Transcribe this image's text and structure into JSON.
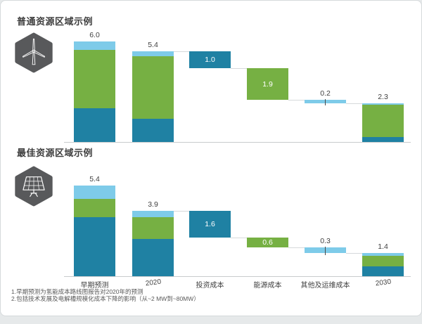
{
  "colors": {
    "teal": "#1F81A3",
    "green": "#76B043",
    "sky": "#7ECBE9",
    "axis": "#C8CBCD",
    "connector": "#D6D9DB",
    "tick": "#4A4A4A",
    "label": "#3F3F3F",
    "inside_label": "#FFFFFF",
    "icon_bg": "#58595B",
    "card_border": "#D5D9DB",
    "page_bg": "#E6E9EA"
  },
  "chart_data": [
    {
      "type": "waterfall",
      "title": "普通资源区域示例",
      "icon": "wind-turbine-icon",
      "legend": "none",
      "value_axis_visible": false,
      "categories": [
        "早期预测",
        "2020",
        "投资成本",
        "能源成本",
        "其他及运维成本",
        "2030"
      ],
      "columns": [
        {
          "category": "早期预测",
          "kind": "stack",
          "total": 6.0,
          "total_display": "6.0",
          "segments": [
            {
              "color": "teal",
              "value": 2.0
            },
            {
              "color": "green",
              "value": 3.5
            },
            {
              "color": "sky",
              "value": 0.5
            }
          ]
        },
        {
          "category": "2020",
          "kind": "stack",
          "total": 5.4,
          "total_display": "5.4",
          "segments": [
            {
              "color": "teal",
              "value": 1.4
            },
            {
              "color": "green",
              "value": 3.7
            },
            {
              "color": "sky",
              "value": 0.3
            }
          ]
        },
        {
          "category": "投资成本",
          "kind": "float",
          "value": 1.0,
          "display": "1.0",
          "top": 5.4,
          "bottom": 4.4,
          "color": "teal",
          "label_pos": "inside"
        },
        {
          "category": "能源成本",
          "kind": "float",
          "value": 1.9,
          "display": "1.9",
          "top": 4.4,
          "bottom": 2.5,
          "color": "green",
          "label_pos": "inside"
        },
        {
          "category": "其他及运维成本",
          "kind": "float",
          "value": 0.2,
          "display": "0.2",
          "top": 2.5,
          "bottom": 2.3,
          "color": "sky",
          "label_pos": "above",
          "tick": true
        },
        {
          "category": "2030",
          "kind": "stack",
          "total": 2.3,
          "total_display": "2.3",
          "segments": [
            {
              "color": "teal",
              "value": 0.3
            },
            {
              "color": "green",
              "value": 1.9
            },
            {
              "color": "sky",
              "value": 0.1
            }
          ]
        }
      ]
    },
    {
      "type": "waterfall",
      "title": "最佳资源区域示例",
      "icon": "solar-panel-icon",
      "legend": "none",
      "value_axis_visible": false,
      "categories": [
        "早期预测",
        "2020",
        "投资成本",
        "能源成本",
        "其他及运维成本",
        "2030"
      ],
      "columns": [
        {
          "category": "早期预测",
          "kind": "stack",
          "total": 5.4,
          "total_display": "5.4",
          "segments": [
            {
              "color": "teal",
              "value": 3.5
            },
            {
              "color": "green",
              "value": 1.1
            },
            {
              "color": "sky",
              "value": 0.8
            }
          ]
        },
        {
          "category": "2020",
          "kind": "stack",
          "total": 3.9,
          "total_display": "3.9",
          "segments": [
            {
              "color": "teal",
              "value": 2.2
            },
            {
              "color": "green",
              "value": 1.3
            },
            {
              "color": "sky",
              "value": 0.4
            }
          ]
        },
        {
          "category": "投资成本",
          "kind": "float",
          "value": 1.6,
          "display": "1.6",
          "top": 3.9,
          "bottom": 2.3,
          "color": "teal",
          "label_pos": "inside"
        },
        {
          "category": "能源成本",
          "kind": "float",
          "value": 0.6,
          "display": "0.6",
          "top": 2.3,
          "bottom": 1.7,
          "color": "green",
          "label_pos": "inside"
        },
        {
          "category": "其他及运维成本",
          "kind": "float",
          "value": 0.3,
          "display": "0.3",
          "top": 1.7,
          "bottom": 1.4,
          "color": "sky",
          "label_pos": "above",
          "tick": true
        },
        {
          "category": "2030",
          "kind": "stack",
          "total": 1.4,
          "total_display": "1.4",
          "segments": [
            {
              "color": "teal",
              "value": 0.6
            },
            {
              "color": "green",
              "value": 0.6
            },
            {
              "color": "sky",
              "value": 0.2
            }
          ]
        }
      ]
    }
  ],
  "footnotes": [
    "1.早期预测为氢能成本路线图报告对2020年的预测",
    "2.包括技术发展及电解槽规模化成本下降的影响（从~2 MW到~80MW）"
  ]
}
